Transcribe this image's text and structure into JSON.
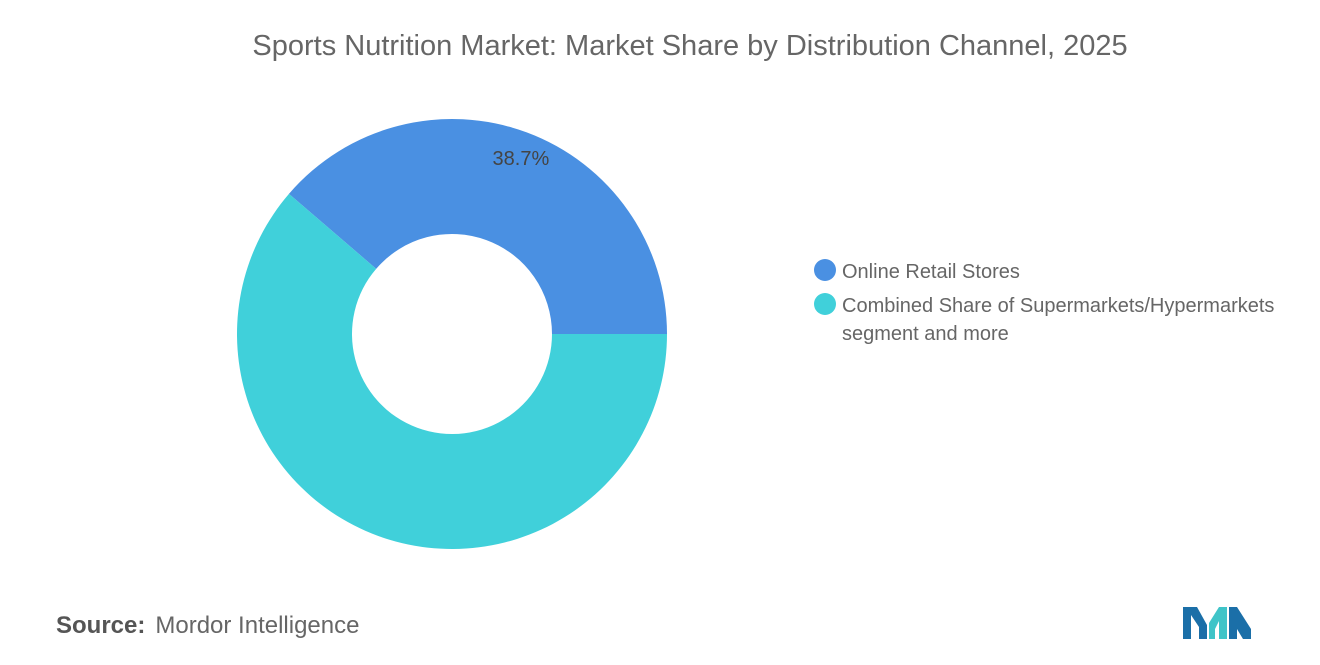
{
  "chart_data": {
    "type": "pie",
    "title": "Sports Nutrition Market: Market Share by Distribution Channel, 2025",
    "categories": [
      "Online Retail Stores",
      "Combined Share of Supermarkets/Hypermarkets segment and more"
    ],
    "values": [
      38.7,
      61.3
    ],
    "data_labels": [
      "38.7%",
      ""
    ],
    "colors": [
      "#4A90E2",
      "#40D0DA"
    ],
    "donut": true,
    "legend_placement": "right"
  },
  "legend": {
    "items": [
      {
        "label": "Online Retail Stores",
        "color": "#4A90E2"
      },
      {
        "label": "Combined Share of Supermarkets/Hypermarkets segment and more",
        "color": "#40D0DA"
      }
    ]
  },
  "source": {
    "label": "Source:",
    "value": "Mordor Intelligence"
  },
  "logo": {
    "icon": "mordor-intelligence-logo-icon",
    "colors": [
      "#1B6FA8",
      "#3FC4C8"
    ]
  }
}
